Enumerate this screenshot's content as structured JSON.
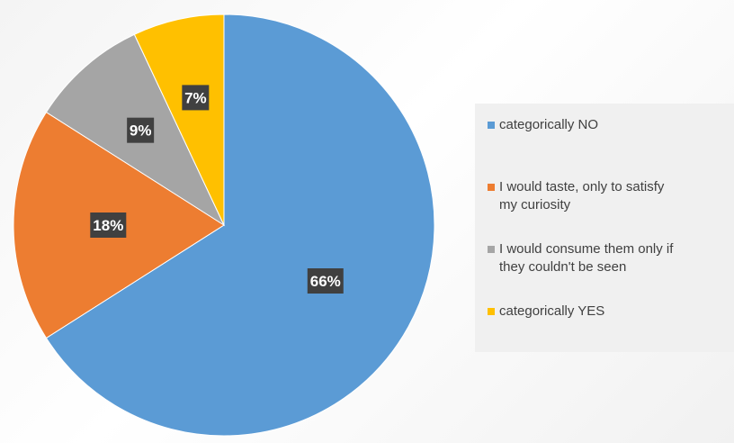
{
  "chart_data": {
    "type": "pie",
    "categories": [
      "categorically NO",
      "I would taste, only to satisfy my curiosity",
      "I would consume them only if they couldn't be seen",
      "categorically YES"
    ],
    "values": [
      66,
      18,
      9,
      7
    ],
    "data_labels": [
      "66%",
      "18%",
      "9%",
      "7%"
    ],
    "colors": [
      "#5B9BD5",
      "#ED7D31",
      "#A5A5A5",
      "#FFC000"
    ],
    "legend_placement": "right",
    "start_angle": "12 o'clock, clockwise"
  },
  "legend": {
    "items": [
      {
        "label": "categorically NO",
        "color": "#5B9BD5"
      },
      {
        "label": "I would taste, only to satisfy\nmy curiosity",
        "color": "#ED7D31"
      },
      {
        "label": "I would consume them only if\nthey couldn't be seen",
        "color": "#A5A5A5"
      },
      {
        "label": "categorically YES",
        "color": "#FFC000"
      }
    ]
  }
}
